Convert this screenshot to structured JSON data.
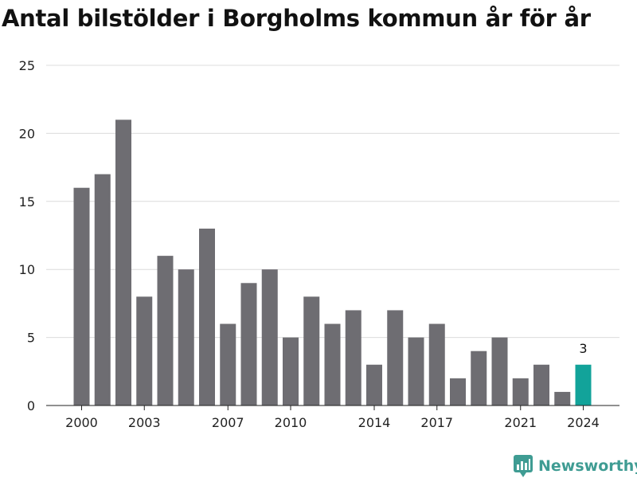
{
  "title": "Antal bilstölder i Borgholms kommun år för år",
  "brand": {
    "name": "Newsworthy",
    "icon": "newsworthy-logo-icon",
    "color": "#3f9c93"
  },
  "colors": {
    "bar": "#6e6d72",
    "highlight": "#12a39a",
    "grid": "#dcdcdc",
    "tick_text": "#222222"
  },
  "chart_data": {
    "type": "bar",
    "categories": [
      2000,
      2001,
      2002,
      2003,
      2004,
      2005,
      2006,
      2007,
      2008,
      2009,
      2010,
      2011,
      2012,
      2013,
      2014,
      2015,
      2016,
      2017,
      2018,
      2019,
      2020,
      2021,
      2022,
      2023,
      2024
    ],
    "values": [
      16,
      17,
      21,
      8,
      11,
      10,
      13,
      6,
      9,
      10,
      5,
      8,
      6,
      7,
      3,
      7,
      5,
      6,
      2,
      4,
      5,
      2,
      3,
      1,
      3
    ],
    "x_tick_labels": [
      "2000",
      "2003",
      "2007",
      "2010",
      "2014",
      "2017",
      "2021",
      "2024"
    ],
    "y_ticks": [
      0,
      5,
      10,
      15,
      20,
      25
    ],
    "ylim": [
      0,
      25
    ],
    "highlight_category": 2024,
    "annotations": [
      {
        "category": 2024,
        "text": "3"
      }
    ],
    "grid": true,
    "legend": "none"
  }
}
